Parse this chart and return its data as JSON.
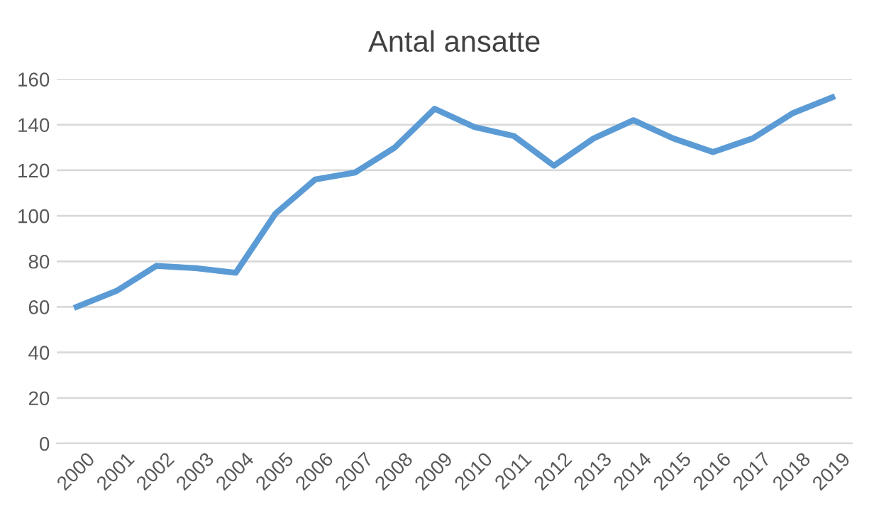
{
  "chart_data": {
    "type": "line",
    "title": "Antal ansatte",
    "categories": [
      "2000",
      "2001",
      "2002",
      "2003",
      "2004",
      "2005",
      "2006",
      "2007",
      "2008",
      "2009",
      "2010",
      "2011",
      "2012",
      "2013",
      "2014",
      "2015",
      "2016",
      "2017",
      "2018",
      "2019"
    ],
    "series": [
      {
        "color": "#5b9bd5",
        "values": [
          60,
          67,
          78,
          77,
          75,
          101,
          116,
          119,
          130,
          147,
          139,
          135,
          122,
          134,
          142,
          134,
          128,
          134,
          145,
          152
        ]
      }
    ],
    "ylim": [
      0,
      160
    ],
    "yticks": [
      0,
      20,
      40,
      60,
      80,
      100,
      120,
      140,
      160
    ],
    "grid": "y",
    "legend": false,
    "marker": "none",
    "line_style": "solid"
  }
}
